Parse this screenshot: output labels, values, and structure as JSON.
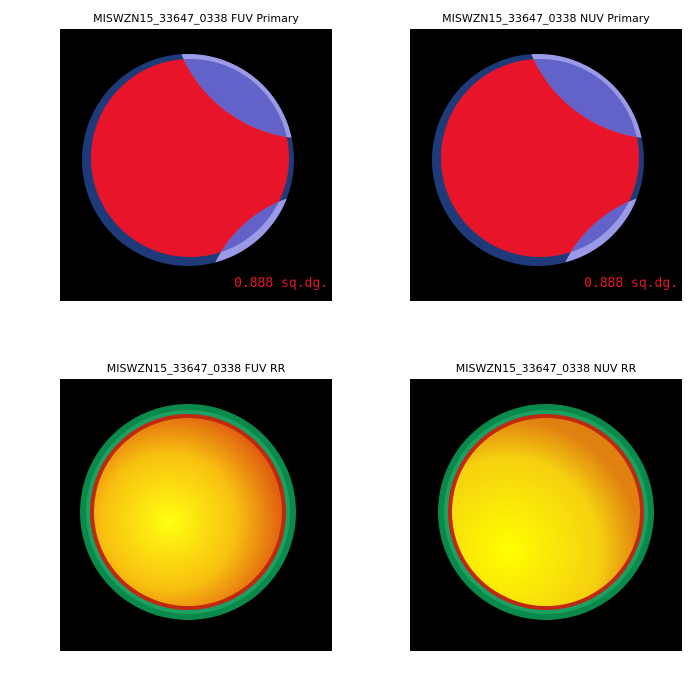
{
  "panels": [
    {
      "title": "MISWZN15_33647_0338 FUV Primary",
      "area_label": "0.888 sq.dg."
    },
    {
      "title": "MISWZN15_33647_0338 NUV Primary",
      "area_label": "0.888 sq.dg."
    },
    {
      "title": "MISWZN15_33647_0338 FUV RR"
    },
    {
      "title": "MISWZN15_33647_0338 NUV RR"
    }
  ]
}
